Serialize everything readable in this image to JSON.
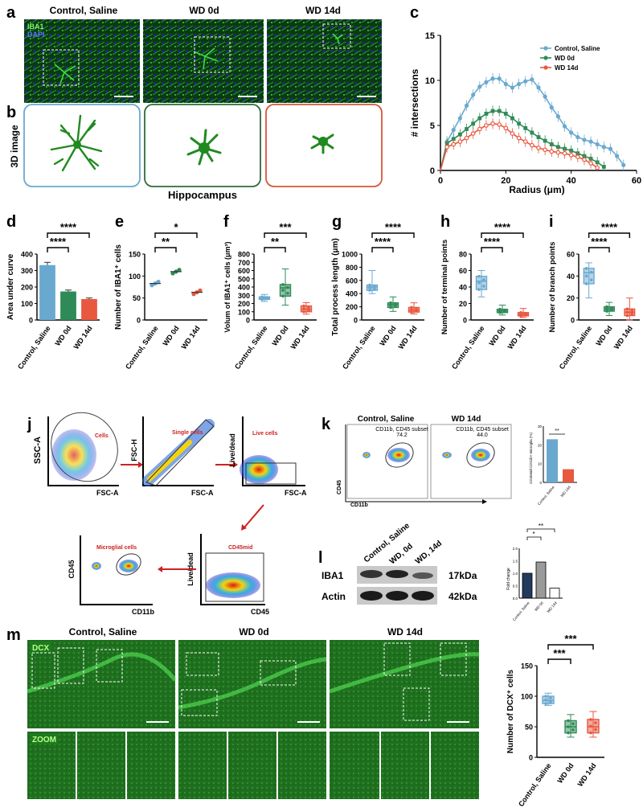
{
  "colors": {
    "control": "#6aa9cf",
    "wd0": "#2e8b57",
    "wd14": "#e8583f",
    "micro": "#22a22a",
    "dapi": "#1e2a9c",
    "bg": "#ffffff"
  },
  "panels": {
    "a": {
      "letter": "a",
      "titles": [
        "Control, Saline",
        "WD 0d",
        "WD 14d"
      ],
      "stain1": "IBA1",
      "stain2": "DAPI"
    },
    "b": {
      "letter": "b",
      "ylabel": "3D image",
      "region": "Hippocampus"
    },
    "d": {
      "letter": "d"
    },
    "e": {
      "letter": "e"
    },
    "f": {
      "letter": "f"
    },
    "g": {
      "letter": "g"
    },
    "h": {
      "letter": "h"
    },
    "i": {
      "letter": "i"
    },
    "j": {
      "letter": "j",
      "gates": [
        "Cells",
        "Single cells",
        "Live cells",
        "CD45mid",
        "Microglial  cells"
      ],
      "axes": {
        "ssc": "SSC-A",
        "fsc": "FSC-A",
        "fsch": "FSC-H",
        "ld": "Live/dead",
        "cd45": "CD45",
        "cd11b": "CD11b"
      }
    },
    "k": {
      "letter": "k",
      "titles": [
        "Control, Saline",
        "WD 14d"
      ],
      "subsets": [
        "CD11b, CD45 subset",
        "CD11b, CD45 subset"
      ],
      "pcts": [
        "74.2",
        "44.0"
      ],
      "yaxis": "CD45",
      "xaxis": "CD11b",
      "barlabel": "CD45mid CD11b+ microglia (%)",
      "cats": [
        "Control, Saline",
        "WD 14d"
      ],
      "sig": "**"
    },
    "l": {
      "letter": "l",
      "lanes": [
        "Control, Saline",
        "WD, 0d",
        "WD, 14d"
      ],
      "bands": [
        "IBA1",
        "Actin"
      ],
      "kda": [
        "17kDa",
        "42kDa"
      ],
      "ylabel": "Fold change",
      "cats": [
        "Control, Saline",
        "WD 0d",
        "WD 14d"
      ],
      "sig": [
        "*",
        "**"
      ]
    },
    "m": {
      "letter": "m",
      "titles": [
        "Control, Saline",
        "WD 0d",
        "WD 14d"
      ],
      "tags": [
        "DCX",
        "ZOOM"
      ]
    }
  },
  "chart_data": [
    {
      "id": "c",
      "type": "line",
      "xlabel": "Radius (μm)",
      "ylabel": "# intersections",
      "xlim": [
        0,
        60
      ],
      "ylim": [
        0,
        15
      ],
      "xticks": [
        0,
        20,
        40,
        60
      ],
      "yticks": [
        0,
        5,
        10,
        15
      ],
      "series": [
        {
          "name": "Control, Saline",
          "x": [
            0,
            2,
            4,
            6,
            8,
            10,
            12,
            14,
            16,
            18,
            20,
            22,
            24,
            26,
            28,
            30,
            32,
            34,
            36,
            38,
            40,
            42,
            44,
            46,
            48,
            50,
            52,
            54,
            56
          ],
          "values": [
            0,
            3.2,
            4.5,
            5.8,
            7.2,
            8.4,
            9.3,
            9.8,
            10.2,
            10.2,
            9.6,
            9.2,
            9.6,
            9.9,
            10.1,
            9.2,
            8.2,
            7.0,
            6.0,
            4.9,
            4.2,
            3.7,
            3.4,
            3.2,
            2.9,
            2.6,
            2.4,
            1.6,
            0.6
          ]
        },
        {
          "name": "WD 0d",
          "x": [
            0,
            2,
            4,
            6,
            8,
            10,
            12,
            14,
            16,
            18,
            20,
            22,
            24,
            26,
            28,
            30,
            32,
            34,
            36,
            38,
            40,
            42,
            44,
            46,
            48,
            50
          ],
          "values": [
            0,
            3.0,
            3.5,
            4.0,
            4.6,
            5.2,
            5.8,
            6.3,
            6.6,
            6.6,
            6.3,
            5.8,
            5.2,
            4.7,
            4.2,
            3.7,
            3.3,
            2.9,
            2.6,
            2.4,
            2.2,
            1.9,
            1.6,
            1.3,
            0.9,
            0.4
          ]
        },
        {
          "name": "WD 14d",
          "x": [
            0,
            2,
            4,
            6,
            8,
            10,
            12,
            14,
            16,
            18,
            20,
            22,
            24,
            26,
            28,
            30,
            32,
            34,
            36,
            38,
            40,
            42,
            44,
            46,
            48
          ],
          "values": [
            0,
            2.6,
            2.9,
            3.2,
            3.6,
            4.1,
            4.6,
            5.0,
            5.2,
            5.1,
            4.7,
            4.1,
            3.6,
            3.2,
            2.8,
            2.5,
            2.3,
            2.1,
            2.0,
            1.9,
            1.7,
            1.5,
            1.2,
            0.8,
            0.3
          ]
        }
      ]
    },
    {
      "id": "d",
      "type": "bar",
      "ylabel": "Area  under curve",
      "categories": [
        "Control, Saline",
        "WD 0d",
        "WD 14d"
      ],
      "values": [
        333,
        173,
        127
      ],
      "ylim": [
        0,
        400
      ],
      "yticks": [
        0,
        100,
        200,
        300,
        400
      ],
      "sig": [
        "****",
        "****"
      ]
    },
    {
      "id": "e",
      "type": "scatter",
      "ylabel": "Number of IBA1⁺ cells",
      "categories": [
        "Control, Saline",
        "WD 0d",
        "WD 14d"
      ],
      "values": [
        83,
        110,
        63
      ],
      "ylim": [
        0,
        150
      ],
      "yticks": [
        0,
        50,
        100,
        150
      ],
      "sig": [
        "**",
        "*"
      ]
    },
    {
      "id": "f",
      "type": "box",
      "ylabel": "Volum of IBA1⁺ cells (μm³)",
      "categories": [
        "Control, Saline",
        "WD 0d",
        "WD 14d"
      ],
      "boxes": [
        [
          225,
          250,
          265,
          280,
          310
        ],
        [
          180,
          290,
          390,
          430,
          620
        ],
        [
          70,
          100,
          130,
          170,
          210
        ]
      ],
      "ylim": [
        0,
        800
      ],
      "yticks": [
        0,
        100,
        200,
        300,
        400,
        500,
        600,
        700,
        800
      ],
      "sig": [
        "**",
        "***"
      ]
    },
    {
      "id": "g",
      "type": "box",
      "ylabel": "Total process length (μm)",
      "categories": [
        "Control, Saline",
        "WD 0d",
        "WD 14d"
      ],
      "boxes": [
        [
          400,
          450,
          500,
          530,
          750
        ],
        [
          130,
          190,
          230,
          260,
          350
        ],
        [
          90,
          120,
          150,
          190,
          260
        ]
      ],
      "ylim": [
        0,
        1000
      ],
      "yticks": [
        0,
        200,
        400,
        600,
        800,
        1000
      ],
      "sig": [
        "****",
        "****"
      ]
    },
    {
      "id": "h",
      "type": "box",
      "ylabel": "Number of terminal points",
      "categories": [
        "Control, Saline",
        "WD 0d",
        "WD 14d"
      ],
      "boxes": [
        [
          28,
          37,
          47,
          53,
          60
        ],
        [
          6,
          9,
          11,
          13,
          18
        ],
        [
          3,
          5,
          7,
          9,
          14
        ]
      ],
      "ylim": [
        0,
        80
      ],
      "yticks": [
        0,
        20,
        40,
        60,
        80
      ],
      "sig": [
        "****",
        "****"
      ]
    },
    {
      "id": "i",
      "type": "box",
      "ylabel": "Number of branch points",
      "categories": [
        "Control, Saline",
        "WD 0d",
        "WD 14d"
      ],
      "boxes": [
        [
          20,
          33,
          43,
          47,
          52
        ],
        [
          4,
          8,
          10,
          12,
          16
        ],
        [
          0,
          4,
          7,
          10,
          20
        ]
      ],
      "ylim": [
        0,
        60
      ],
      "yticks": [
        0,
        20,
        40,
        60
      ],
      "sig": [
        "****",
        "****"
      ]
    },
    {
      "id": "k",
      "type": "bar",
      "categories": [
        "Control, Saline",
        "WD 14d"
      ],
      "values": [
        23,
        7
      ],
      "ylim": [
        0,
        30
      ],
      "yticks": [
        0,
        10,
        20,
        30
      ]
    },
    {
      "id": "l",
      "type": "bar",
      "categories": [
        "Control, Saline",
        "WD 0d",
        "WD 14d"
      ],
      "values": [
        1.0,
        1.45,
        0.4
      ],
      "ylim": [
        0,
        2.0
      ],
      "yticks": [
        0.0,
        0.5,
        1.0,
        1.5,
        2.0
      ]
    },
    {
      "id": "m",
      "type": "box",
      "ylabel": "Number of DCX⁺ cells",
      "categories": [
        "Control, Saline",
        "WD 0d",
        "WD 14d"
      ],
      "boxes": [
        [
          85,
          88,
          93,
          100,
          105
        ],
        [
          33,
          40,
          50,
          60,
          70
        ],
        [
          33,
          40,
          50,
          62,
          75
        ]
      ],
      "ylim": [
        0,
        150
      ],
      "yticks": [
        0,
        50,
        100,
        150
      ],
      "sig": [
        "***",
        "***"
      ]
    }
  ]
}
